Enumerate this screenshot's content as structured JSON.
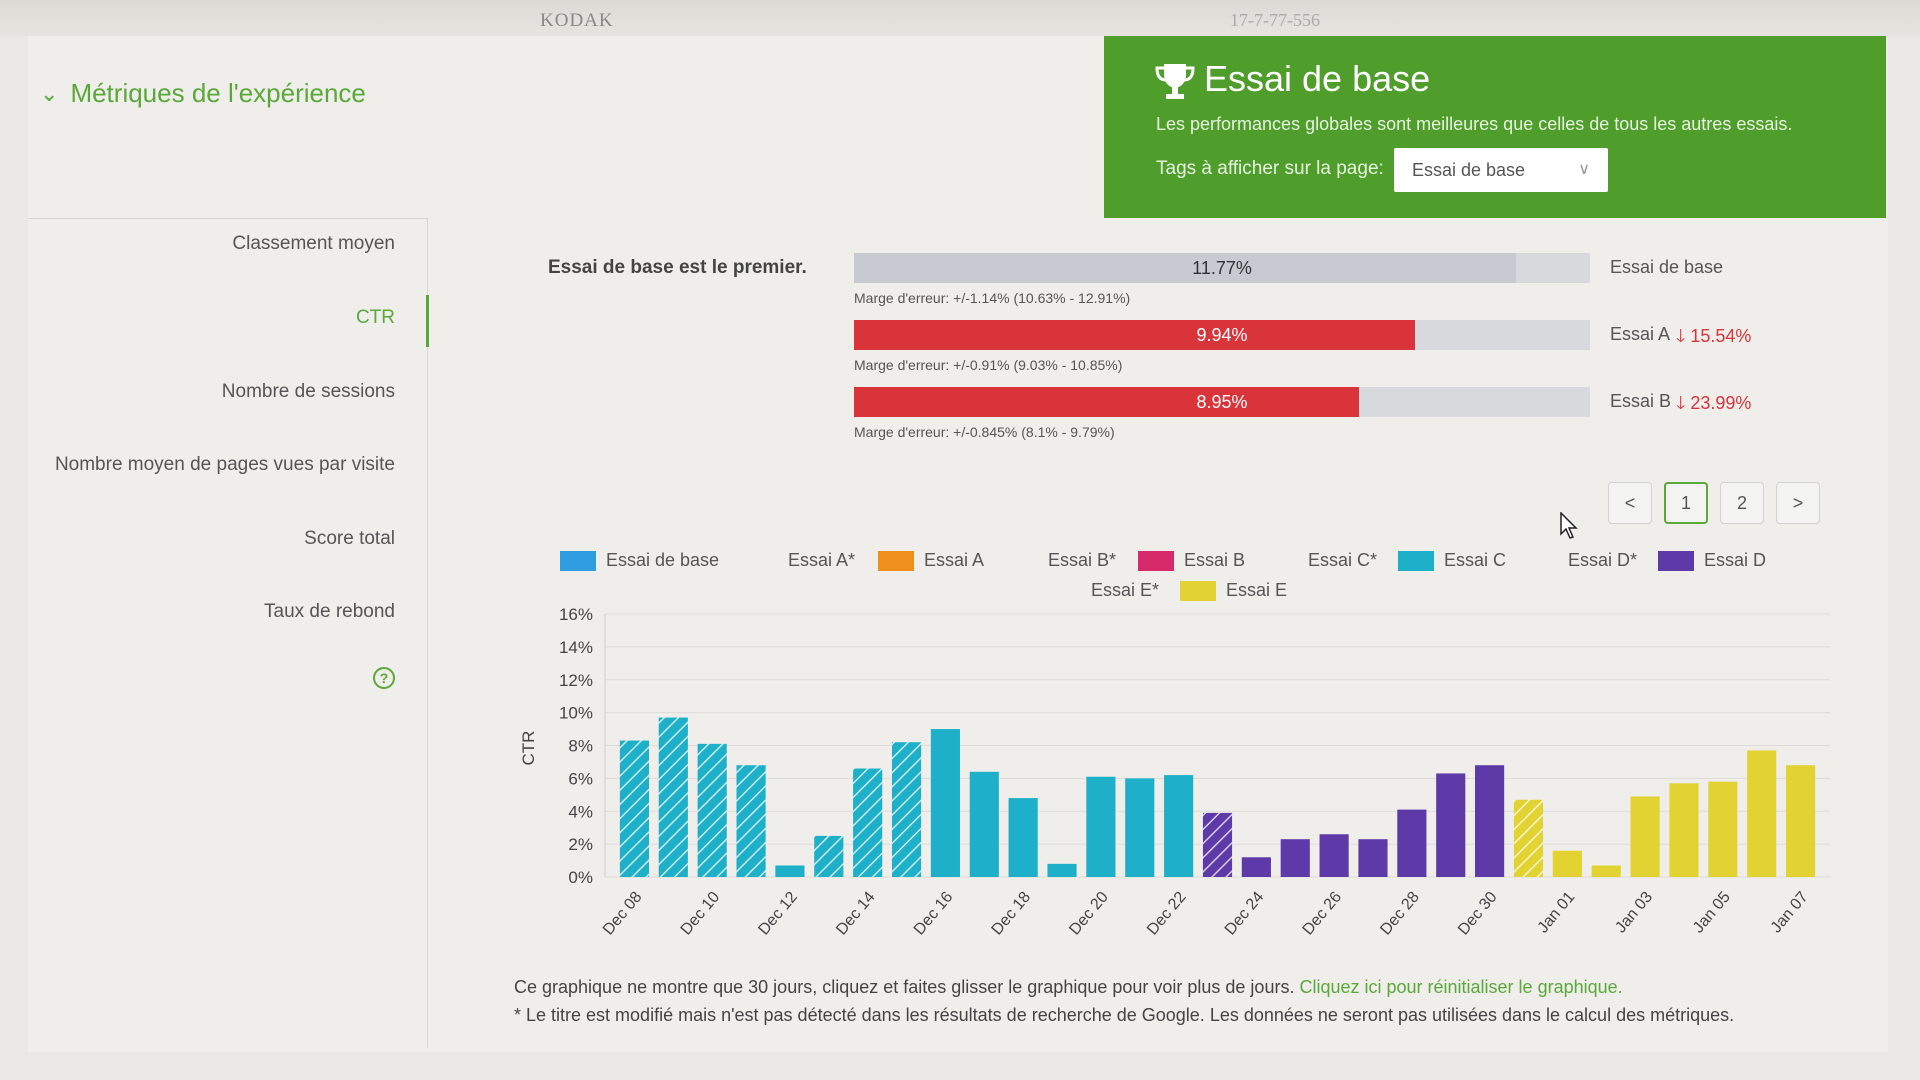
{
  "topbar": {
    "left_text": "KODAK",
    "right_text": "17-7-77-556"
  },
  "header": {
    "title": "Métriques de l'expérience"
  },
  "banner": {
    "title": "Essai de base",
    "subtitle": "Les performances globales sont meilleures que celles de tous les autres essais.",
    "tags_label": "Tags à afficher sur la page:",
    "tags_value": "Essai de base"
  },
  "sidebar": {
    "items": [
      {
        "label": "Classement moyen"
      },
      {
        "label": "CTR",
        "active": true
      },
      {
        "label": "Nombre de sessions"
      },
      {
        "label": "Nombre moyen de pages vues par visite"
      },
      {
        "label": "Score total"
      },
      {
        "label": "Taux de rebond"
      }
    ]
  },
  "summary": {
    "leader_text": "Essai de base est le premier.",
    "bars": [
      {
        "name": "Essai de base",
        "pct_label": "11.77%",
        "fill_fraction": 0.9,
        "color": "#c7cad1",
        "margin": "Marge d'erreur: +/-1.14% (10.63% - 12.91%)",
        "delta": ""
      },
      {
        "name": "Essai A",
        "pct_label": "9.94%",
        "fill_fraction": 0.762,
        "color": "#d8343a",
        "margin": "Marge d'erreur: +/-0.91% (9.03% - 10.85%)",
        "delta": "15.54%"
      },
      {
        "name": "Essai B",
        "pct_label": "8.95%",
        "fill_fraction": 0.686,
        "color": "#d8343a",
        "margin": "Marge d'erreur: +/-0.845% (8.1% - 9.79%)",
        "delta": "23.99%"
      }
    ]
  },
  "pagination": {
    "prev": "<",
    "pages": [
      "1",
      "2"
    ],
    "current": "1",
    "next": ">"
  },
  "chart_data": {
    "type": "bar",
    "ylabel": "CTR",
    "ylim": [
      0,
      16
    ],
    "yticks": [
      "0%",
      "2%",
      "4%",
      "6%",
      "8%",
      "10%",
      "12%",
      "14%",
      "16%"
    ],
    "grid": true,
    "legend": [
      {
        "label": "Essai de base",
        "color": "#2f9de0"
      },
      {
        "label": "Essai A*",
        "color": null
      },
      {
        "label": "Essai A",
        "color": "#ef8f1c"
      },
      {
        "label": "Essai B*",
        "color": null
      },
      {
        "label": "Essai B",
        "color": "#d6296a"
      },
      {
        "label": "Essai C*",
        "color": null
      },
      {
        "label": "Essai C",
        "color": "#1fb0c9"
      },
      {
        "label": "Essai D*",
        "color": null
      },
      {
        "label": "Essai D",
        "color": "#5d3aa8"
      },
      {
        "label": "Essai E*",
        "color": null
      },
      {
        "label": "Essai E",
        "color": "#e2d332"
      }
    ],
    "x_tick_labels": [
      "Dec 08",
      "Dec 10",
      "Dec 12",
      "Dec 14",
      "Dec 16",
      "Dec 18",
      "Dec 20",
      "Dec 22",
      "Dec 24",
      "Dec 26",
      "Dec 28",
      "Dec 30",
      "Jan 01",
      "Jan 03",
      "Jan 05",
      "Jan 07"
    ],
    "series": [
      {
        "name": "Essai C*",
        "color": "#1fb0c9",
        "hatched": true,
        "x": [
          "Dec 08",
          "Dec 09",
          "Dec 10",
          "Dec 11"
        ],
        "values": [
          8.3,
          9.7,
          8.1,
          6.8
        ]
      },
      {
        "name": "Essai C",
        "color": "#1fb0c9",
        "hatched": false,
        "x": [
          "Dec 12"
        ],
        "values": [
          0.7
        ]
      },
      {
        "name": "Essai C*",
        "color": "#1fb0c9",
        "hatched": true,
        "x": [
          "Dec 13",
          "Dec 14",
          "Dec 15"
        ],
        "values": [
          2.5,
          6.6,
          8.2
        ]
      },
      {
        "name": "Essai C",
        "color": "#1fb0c9",
        "hatched": false,
        "x": [
          "Dec 16",
          "Dec 17",
          "Dec 18",
          "Dec 19",
          "Dec 20",
          "Dec 21",
          "Dec 22"
        ],
        "values": [
          9.0,
          6.4,
          4.8,
          0.8,
          6.1,
          6.0,
          6.2
        ]
      },
      {
        "name": "Essai D*",
        "color": "#5d3aa8",
        "hatched": true,
        "x": [
          "Dec 23"
        ],
        "values": [
          3.9
        ]
      },
      {
        "name": "Essai D",
        "color": "#5d3aa8",
        "hatched": false,
        "x": [
          "Dec 24",
          "Dec 25",
          "Dec 26",
          "Dec 27",
          "Dec 28",
          "Dec 29",
          "Dec 30"
        ],
        "values": [
          1.2,
          2.3,
          2.6,
          2.3,
          4.1,
          6.3,
          6.8
        ]
      },
      {
        "name": "Essai E*",
        "color": "#e2d332",
        "hatched": true,
        "x": [
          "Dec 31"
        ],
        "values": [
          4.7
        ]
      },
      {
        "name": "Essai E",
        "color": "#e2d332",
        "hatched": false,
        "x": [
          "Jan 01",
          "Jan 02",
          "Jan 03",
          "Jan 04",
          "Jan 05",
          "Jan 06",
          "Jan 07"
        ],
        "values": [
          1.6,
          0.7,
          4.9,
          5.7,
          5.8,
          7.7,
          6.8
        ]
      }
    ]
  },
  "footnotes": {
    "line1": "Ce graphique ne montre que 30 jours, cliquez et faites glisser le graphique pour voir plus de jours.",
    "line1_link": "Cliquez ici pour réinitialiser le graphique.",
    "line2": "* Le titre est modifié mais n'est pas détecté dans les résultats de recherche de Google. Les données ne seront pas utilisées dans le calcul des métriques."
  }
}
